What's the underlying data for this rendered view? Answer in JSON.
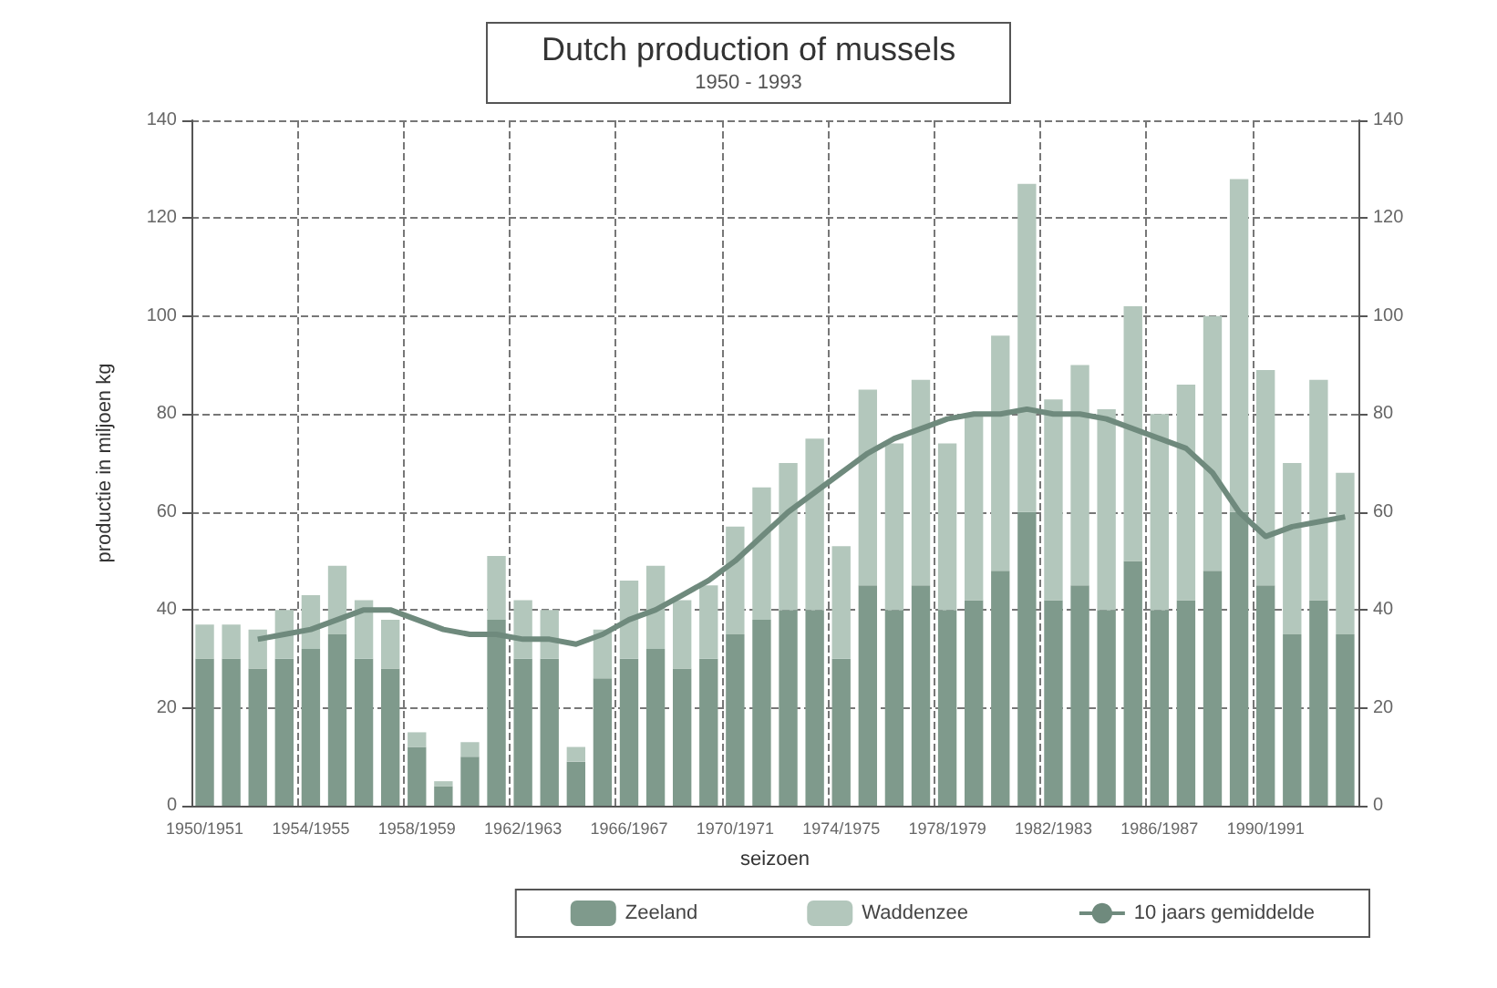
{
  "chart_data": {
    "type": "bar",
    "title": "Dutch production of mussels",
    "subtitle": "1950 - 1993",
    "xlabel": "seizoen",
    "ylabel": "productie in miljoen kg",
    "categories": [
      "1950/1951",
      null,
      null,
      null,
      "1954/1955",
      null,
      null,
      null,
      "1958/1959",
      null,
      null,
      null,
      "1962/1963",
      null,
      null,
      null,
      "1966/1967",
      null,
      null,
      null,
      "1970/1971",
      null,
      null,
      null,
      "1974/1975",
      null,
      null,
      null,
      "1978/1979",
      null,
      null,
      null,
      "1982/1983",
      null,
      null,
      null,
      "1986/1987",
      null,
      null,
      null,
      "1990/1991",
      null,
      null,
      null
    ],
    "stacked": true,
    "series": [
      {
        "name": "Zeeland",
        "color": "#7f9a8c",
        "values": [
          30,
          30,
          28,
          30,
          32,
          35,
          30,
          28,
          12,
          4,
          10,
          38,
          30,
          30,
          9,
          26,
          30,
          32,
          28,
          30,
          35,
          38,
          40,
          40,
          30,
          45,
          40,
          45,
          40,
          42,
          48,
          60,
          42,
          45,
          40,
          50,
          40,
          42,
          48,
          60,
          45,
          35,
          42,
          35
        ]
      },
      {
        "name": "Waddenzee",
        "color": "#b3c7bc",
        "values": [
          7,
          7,
          8,
          10,
          11,
          14,
          12,
          10,
          3,
          1,
          3,
          13,
          12,
          10,
          3,
          10,
          16,
          17,
          14,
          15,
          22,
          27,
          30,
          35,
          23,
          40,
          34,
          42,
          34,
          38,
          48,
          67,
          41,
          45,
          41,
          52,
          40,
          44,
          52,
          68,
          44,
          35,
          45,
          33
        ]
      },
      {
        "name": "10 jaars gemiddelde",
        "type": "line",
        "color": "#6f8a7d",
        "values": [
          null,
          null,
          34,
          35,
          36,
          38,
          40,
          40,
          38,
          36,
          35,
          35,
          34,
          34,
          33,
          35,
          38,
          40,
          43,
          46,
          50,
          55,
          60,
          64,
          68,
          72,
          75,
          77,
          79,
          80,
          80,
          81,
          80,
          80,
          79,
          77,
          75,
          73,
          68,
          60,
          55,
          57,
          58,
          59
        ]
      }
    ],
    "ylim": [
      0,
      140
    ],
    "yticks": [
      0,
      20,
      40,
      60,
      80,
      100,
      120,
      140
    ],
    "y2lim": [
      0,
      140
    ],
    "y2ticks": [
      0,
      20,
      40,
      60,
      80,
      100,
      120,
      140
    ],
    "grid": true,
    "legend": "bottom",
    "marker": "none"
  }
}
